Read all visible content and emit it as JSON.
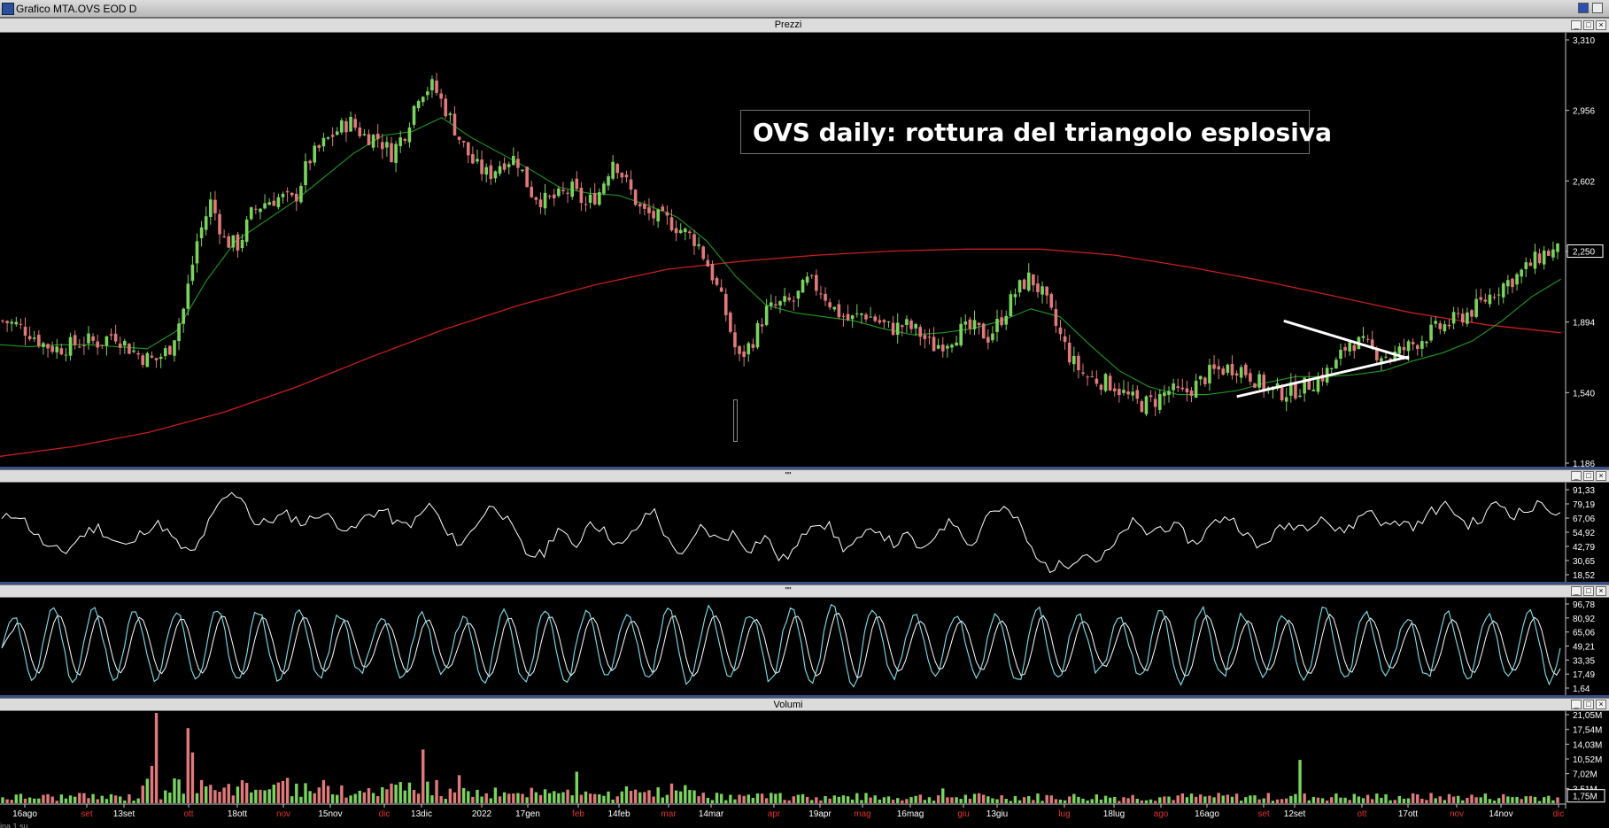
{
  "window": {
    "title": "Grafico MTA.OVS EOD D"
  },
  "colors": {
    "up": "#7bd35f",
    "down": "#e07a7a",
    "ma_short": "#1f9a1f",
    "ma_long": "#c81e1e",
    "rsi": "#ffffff",
    "stoch_k": "#7fe3ee",
    "stoch_d": "#ffffff",
    "trendline": "#ffffff",
    "axis_text": "#ffffff"
  },
  "panels": {
    "price_title": "Prezzi",
    "rsi_title": "\"\"",
    "stoch_title": "\"\"",
    "volume_title": "Volumi"
  },
  "annotation": "OVS daily: rottura del triangolo esplosiva",
  "status_text": "ina 1 su",
  "chart_data": [
    {
      "type": "line",
      "panel": "price",
      "title": "Prezzi",
      "y_ticks": [
        "3,310",
        "2,956",
        "2,602",
        "2,250",
        "1,894",
        "1,540",
        "1,186"
      ],
      "last_value_label": "2,250",
      "ylim": [
        1.186,
        3.31
      ],
      "x_tick_labels": [
        {
          "label": "16ago",
          "color": "#ffffff"
        },
        {
          "label": "set",
          "color": "#e03030"
        },
        {
          "label": "13set",
          "color": "#ffffff"
        },
        {
          "label": "ott",
          "color": "#e03030"
        },
        {
          "label": "18ott",
          "color": "#ffffff"
        },
        {
          "label": "nov",
          "color": "#e03030"
        },
        {
          "label": "15nov",
          "color": "#ffffff"
        },
        {
          "label": "dic",
          "color": "#e03030"
        },
        {
          "label": "13dic",
          "color": "#ffffff"
        },
        {
          "label": "2022",
          "color": "#ffffff"
        },
        {
          "label": "17gen",
          "color": "#ffffff"
        },
        {
          "label": "feb",
          "color": "#e03030"
        },
        {
          "label": "14feb",
          "color": "#ffffff"
        },
        {
          "label": "mar",
          "color": "#e03030"
        },
        {
          "label": "14mar",
          "color": "#ffffff"
        },
        {
          "label": "apr",
          "color": "#e03030"
        },
        {
          "label": "19apr",
          "color": "#ffffff"
        },
        {
          "label": "mag",
          "color": "#e03030"
        },
        {
          "label": "16mag",
          "color": "#ffffff"
        },
        {
          "label": "giu",
          "color": "#e03030"
        },
        {
          "label": "13giu",
          "color": "#ffffff"
        },
        {
          "label": "lug",
          "color": "#e03030"
        },
        {
          "label": "18lug",
          "color": "#ffffff"
        },
        {
          "label": "ago",
          "color": "#e03030"
        },
        {
          "label": "16ago",
          "color": "#ffffff"
        },
        {
          "label": "set",
          "color": "#e03030"
        },
        {
          "label": "12set",
          "color": "#ffffff"
        },
        {
          "label": "ott",
          "color": "#e03030"
        },
        {
          "label": "17ott",
          "color": "#ffffff"
        },
        {
          "label": "nov",
          "color": "#e03030"
        },
        {
          "label": "14nov",
          "color": "#ffffff"
        },
        {
          "label": "dic",
          "color": "#e03030"
        }
      ],
      "close_path": [
        1.9,
        1.88,
        1.84,
        1.78,
        1.76,
        1.78,
        1.8,
        1.79,
        1.84,
        1.77,
        1.72,
        1.7,
        1.76,
        1.95,
        2.3,
        2.5,
        2.3,
        2.28,
        2.45,
        2.5,
        2.52,
        2.5,
        2.7,
        2.78,
        2.85,
        2.9,
        2.83,
        2.82,
        2.74,
        2.85,
        3.05,
        3.08,
        2.95,
        2.8,
        2.68,
        2.63,
        2.7,
        2.72,
        2.55,
        2.5,
        2.52,
        2.56,
        2.48,
        2.55,
        2.72,
        2.58,
        2.45,
        2.42,
        2.4,
        2.35,
        2.3,
        2.15,
        1.96,
        1.7,
        1.8,
        1.95,
        1.98,
        2.0,
        2.1,
        2.05,
        1.95,
        1.9,
        1.94,
        1.9,
        1.86,
        1.88,
        1.84,
        1.77,
        1.8,
        1.85,
        1.86,
        1.82,
        1.92,
        2.05,
        2.12,
        2.02,
        1.85,
        1.7,
        1.62,
        1.6,
        1.58,
        1.52,
        1.48,
        1.5,
        1.55,
        1.53,
        1.58,
        1.64,
        1.66,
        1.67,
        1.62,
        1.56,
        1.54,
        1.55,
        1.58,
        1.62,
        1.68,
        1.8,
        1.78,
        1.74,
        1.72,
        1.76,
        1.8,
        1.85,
        1.88,
        1.92,
        1.96,
        2.02,
        2.08,
        2.12,
        2.18,
        2.24,
        2.25
      ],
      "candle_count": 345,
      "series": [
        {
          "name": "",
          "kind": "ma_short",
          "values": [
            1.78,
            1.77,
            1.78,
            1.78,
            1.77,
            1.76,
            1.85,
            2.1,
            2.3,
            2.4,
            2.5,
            2.62,
            2.74,
            2.83,
            2.85,
            2.92,
            2.82,
            2.74,
            2.66,
            2.57,
            2.54,
            2.53,
            2.48,
            2.42,
            2.3,
            2.12,
            1.98,
            1.94,
            1.92,
            1.9,
            1.86,
            1.83,
            1.84,
            1.86,
            1.9,
            1.96,
            1.92,
            1.78,
            1.65,
            1.57,
            1.53,
            1.53,
            1.55,
            1.59,
            1.62,
            1.62,
            1.63,
            1.65,
            1.7,
            1.74,
            1.8,
            1.9,
            2.02,
            2.11
          ]
        },
        {
          "name": "",
          "kind": "ma_long",
          "values": [
            1.22,
            1.27,
            1.34,
            1.44,
            1.57,
            1.72,
            1.86,
            1.98,
            2.08,
            2.16,
            2.2,
            2.23,
            2.25,
            2.26,
            2.26,
            2.23,
            2.17,
            2.1,
            2.02,
            1.94,
            1.88,
            1.84
          ]
        }
      ],
      "trendlines": [
        {
          "from": [
            0.79,
            1.52
          ],
          "to": [
            0.9,
            1.72
          ]
        },
        {
          "from": [
            0.82,
            1.9
          ],
          "to": [
            0.9,
            1.71
          ]
        }
      ]
    },
    {
      "type": "line",
      "panel": "rsi",
      "y_ticks": [
        "91,33",
        "79,19",
        "67,06",
        "54,92",
        "42,79",
        "30,65",
        "18,52"
      ],
      "ylim": [
        18.52,
        91.33
      ],
      "series": [
        {
          "name": "",
          "values": [
            65,
            72,
            55,
            40,
            38,
            52,
            60,
            48,
            42,
            58,
            62,
            45,
            35,
            62,
            85,
            88,
            60,
            66,
            70,
            62,
            72,
            64,
            55,
            70,
            74,
            60,
            64,
            80,
            52,
            45,
            66,
            80,
            60,
            36,
            35,
            60,
            40,
            66,
            54,
            42,
            60,
            75,
            44,
            36,
            60,
            48,
            54,
            40,
            52,
            30,
            42,
            66,
            60,
            40,
            48,
            60,
            44,
            52,
            36,
            60,
            64,
            42,
            72,
            76,
            62,
            32,
            24,
            28,
            38,
            30,
            44,
            64,
            54,
            60,
            58,
            44,
            60,
            70,
            58,
            40,
            54,
            62,
            60,
            70,
            54,
            62,
            76,
            60,
            64,
            60,
            74,
            78,
            62,
            64,
            82,
            70,
            74,
            80,
            68
          ]
        }
      ]
    },
    {
      "type": "line",
      "panel": "stochastic",
      "y_ticks": [
        "96,78",
        "80,92",
        "65,06",
        "49,21",
        "33,35",
        "17,49",
        "1,64"
      ],
      "ylim": [
        1.64,
        96.78
      ],
      "cycles": 38,
      "series": [
        {
          "name": "",
          "kind": "k"
        },
        {
          "name": "",
          "kind": "d"
        }
      ]
    },
    {
      "type": "bar",
      "panel": "volume",
      "title": "Volumi",
      "y_ticks": [
        "21,05M",
        "17,54M",
        "14,03M",
        "10,52M",
        "7,02M",
        "3,51M"
      ],
      "last_value_label": "1,75M",
      "ylim": [
        0,
        21.05
      ],
      "units": "M",
      "spikes": [
        {
          "pos": 0.1,
          "value": 21.0
        },
        {
          "pos": 0.12,
          "value": 15.0
        },
        {
          "pos": 0.095,
          "value": 8.0
        },
        {
          "pos": 0.122,
          "value": 11.0
        },
        {
          "pos": 0.27,
          "value": 10.0
        },
        {
          "pos": 0.293,
          "value": 6.5
        },
        {
          "pos": 0.43,
          "value": 4.5
        },
        {
          "pos": 0.605,
          "value": 3.5
        },
        {
          "pos": 0.835,
          "value": 10.3
        },
        {
          "pos": 0.37,
          "value": 6.0
        }
      ]
    }
  ]
}
